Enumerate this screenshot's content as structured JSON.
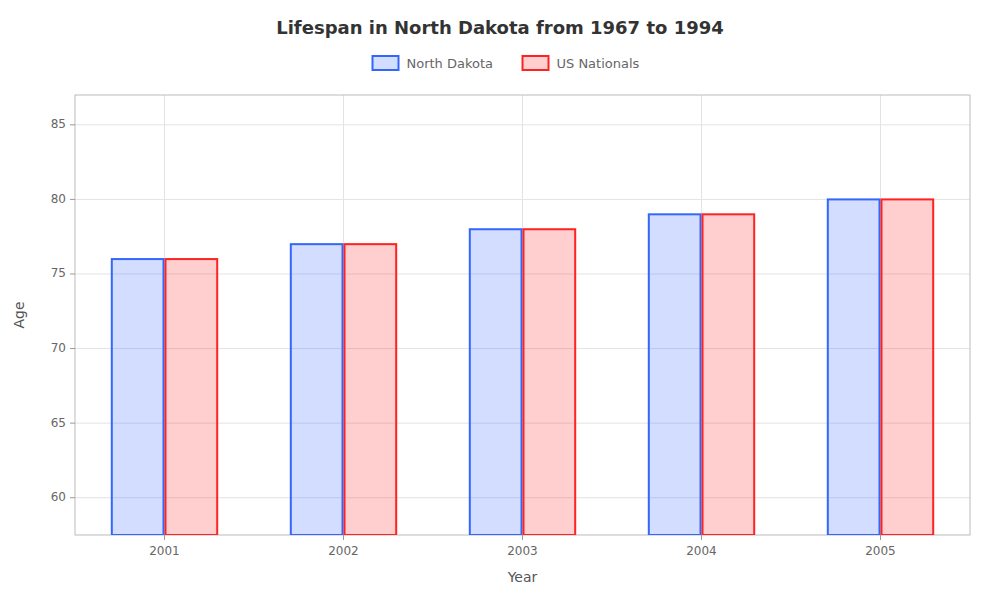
{
  "chart_data": {
    "type": "bar",
    "title": "Lifespan in North Dakota from 1967 to 1994",
    "xlabel": "Year",
    "ylabel": "Age",
    "categories": [
      "2001",
      "2002",
      "2003",
      "2004",
      "2005"
    ],
    "series": [
      {
        "name": "North Dakota",
        "color": "#3366ff",
        "values": [
          76,
          77,
          78,
          79,
          80
        ]
      },
      {
        "name": "US Nationals",
        "color": "#ff2222",
        "values": [
          76,
          77,
          78,
          79,
          80
        ]
      }
    ],
    "ylim": [
      57.5,
      87
    ],
    "yticks": [
      60,
      65,
      70,
      75,
      80,
      85
    ],
    "grid": true,
    "legend": "top"
  }
}
